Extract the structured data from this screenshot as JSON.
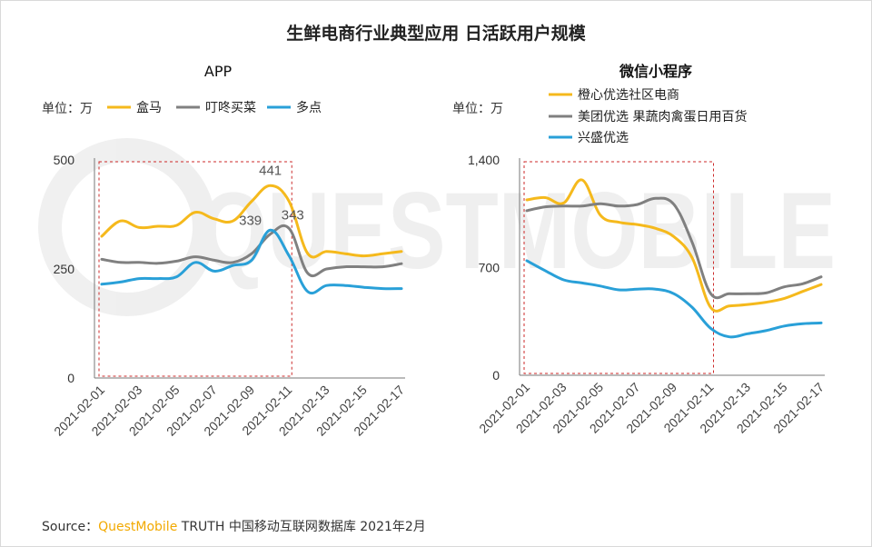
{
  "title": "生鲜电商行业典型应用 日活跃用户规模",
  "source": {
    "prefix": "Source：",
    "brand": "QuestMobile",
    "rest": " TRUTH 中国移动互联网数据库 2021年2月"
  },
  "watermark": "QUESTMOBILE",
  "colors": {
    "yellow": "#f5b91c",
    "gray": "#808080",
    "blue": "#29a0d8",
    "highlight": "#cc2a2a"
  },
  "chart_data": [
    {
      "type": "line",
      "title": "APP",
      "unit_label": "单位：万",
      "ylim": [
        0,
        500
      ],
      "yticks": [
        "0",
        "250",
        "500"
      ],
      "legend_placement": "top",
      "x": [
        "2021-02-01",
        "2021-02-02",
        "2021-02-03",
        "2021-02-04",
        "2021-02-05",
        "2021-02-06",
        "2021-02-07",
        "2021-02-08",
        "2021-02-09",
        "2021-02-10",
        "2021-02-11",
        "2021-02-12",
        "2021-02-13",
        "2021-02-14",
        "2021-02-15",
        "2021-02-16",
        "2021-02-17"
      ],
      "xtick_labels": [
        "2021-02-01",
        "2021-02-03",
        "2021-02-05",
        "2021-02-07",
        "2021-02-09",
        "2021-02-11",
        "2021-02-13",
        "2021-02-15",
        "2021-02-17"
      ],
      "highlight_range": [
        "2021-02-01",
        "2021-02-11"
      ],
      "series": [
        {
          "name": "盒马",
          "color": "#f5b91c",
          "values": [
            325,
            360,
            345,
            348,
            350,
            380,
            365,
            360,
            405,
            441,
            405,
            285,
            290,
            285,
            280,
            285,
            290
          ]
        },
        {
          "name": "叮咚买菜",
          "color": "#808080",
          "values": [
            272,
            265,
            265,
            263,
            268,
            278,
            270,
            265,
            285,
            330,
            343,
            240,
            250,
            255,
            255,
            255,
            262
          ]
        },
        {
          "name": "多点",
          "color": "#29a0d8",
          "values": [
            215,
            220,
            228,
            228,
            232,
            265,
            245,
            258,
            270,
            339,
            280,
            198,
            212,
            212,
            208,
            205,
            205
          ]
        }
      ],
      "annotations": [
        {
          "series": 0,
          "index": 9,
          "text": "441"
        },
        {
          "series": 2,
          "index": 9,
          "text": "339"
        },
        {
          "series": 1,
          "index": 10,
          "text": "343"
        }
      ]
    },
    {
      "type": "line",
      "title": "微信小程序",
      "unit_label": "单位：万",
      "ylim": [
        0,
        1400
      ],
      "yticks": [
        "0",
        "700",
        "1,400"
      ],
      "legend_placement": "top",
      "x": [
        "2021-02-01",
        "2021-02-02",
        "2021-02-03",
        "2021-02-04",
        "2021-02-05",
        "2021-02-06",
        "2021-02-07",
        "2021-02-08",
        "2021-02-09",
        "2021-02-10",
        "2021-02-11",
        "2021-02-12",
        "2021-02-13",
        "2021-02-14",
        "2021-02-15",
        "2021-02-16",
        "2021-02-17"
      ],
      "xtick_labels": [
        "2021-02-01",
        "2021-02-03",
        "2021-02-05",
        "2021-02-07",
        "2021-02-09",
        "2021-02-11",
        "2021-02-13",
        "2021-02-15",
        "2021-02-17"
      ],
      "highlight_range": [
        "2021-02-01",
        "2021-02-11"
      ],
      "series": [
        {
          "name": "橙心优选社区电商",
          "color": "#f5b91c",
          "values": [
            1140,
            1155,
            1120,
            1270,
            1040,
            995,
            980,
            955,
            900,
            760,
            440,
            450,
            460,
            475,
            500,
            545,
            590
          ]
        },
        {
          "name": "美团优选 果蔬肉禽蛋日用百货",
          "color": "#808080",
          "values": [
            1070,
            1095,
            1100,
            1100,
            1115,
            1100,
            1110,
            1150,
            1110,
            860,
            530,
            530,
            530,
            535,
            575,
            595,
            640
          ]
        },
        {
          "name": "兴盛优选",
          "color": "#29a0d8",
          "values": [
            745,
            680,
            620,
            600,
            580,
            555,
            560,
            560,
            530,
            440,
            305,
            250,
            270,
            290,
            320,
            335,
            340
          ]
        }
      ]
    }
  ]
}
